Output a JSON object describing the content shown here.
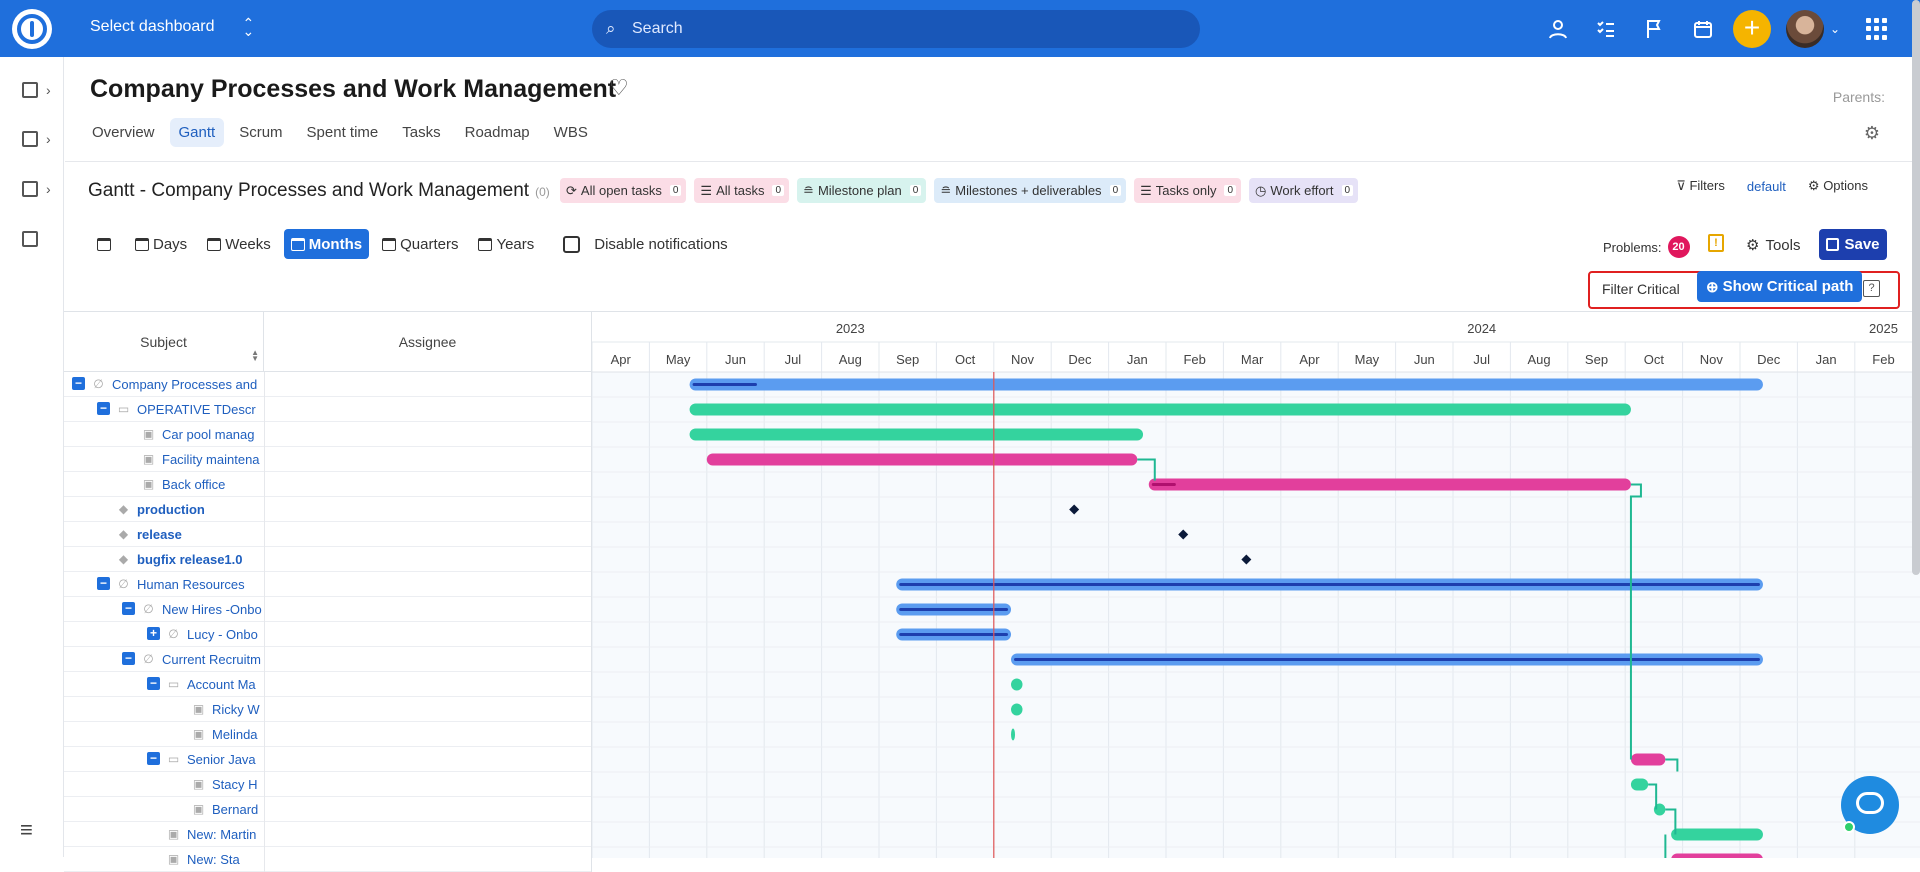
{
  "topbar": {
    "dashboard_select": "Select dashboard",
    "search_placeholder": "Search",
    "plus": "+"
  },
  "project": {
    "title": "Company Processes and Work Management",
    "parents_label": "Parents:",
    "tabs": [
      {
        "label": "Overview",
        "active": false
      },
      {
        "label": "Gantt",
        "active": true
      },
      {
        "label": "Scrum",
        "active": false
      },
      {
        "label": "Spent time",
        "active": false
      },
      {
        "label": "Tasks",
        "active": false
      },
      {
        "label": "Roadmap",
        "active": false
      },
      {
        "label": "WBS",
        "active": false
      }
    ]
  },
  "gantt": {
    "title": "Gantt - Company Processes and Work Management",
    "count": "(0)",
    "filters": [
      {
        "label": "All open tasks",
        "count": "0",
        "color": "#fbdde6",
        "icon": "refresh-icon"
      },
      {
        "label": "All tasks",
        "count": "0",
        "color": "#fbdde6",
        "icon": "list-icon"
      },
      {
        "label": "Milestone plan",
        "count": "0",
        "color": "#d7f3ee",
        "icon": "milestone-icon"
      },
      {
        "label": "Milestones + deliverables",
        "count": "0",
        "color": "#dcebf9",
        "icon": "milestone-icon"
      },
      {
        "label": "Tasks only",
        "count": "0",
        "color": "#fbdde6",
        "icon": "list-icon"
      },
      {
        "label": "Work effort",
        "count": "0",
        "color": "#e6e2f7",
        "icon": "clock-icon"
      }
    ],
    "filters_label": "Filters",
    "default_label": "default",
    "options_label": "Options",
    "zoom": [
      {
        "label": "Days",
        "active": false
      },
      {
        "label": "Weeks",
        "active": false
      },
      {
        "label": "Months",
        "active": true
      },
      {
        "label": "Quarters",
        "active": false
      },
      {
        "label": "Years",
        "active": false
      }
    ],
    "disable_notifications": "Disable notifications",
    "problems_label": "Problems:",
    "problems_count": "20",
    "tools_label": "Tools",
    "save_label": "Save",
    "filter_critical": "Filter Critical",
    "show_critical_path": "Show Critical path",
    "help": "?",
    "columns": {
      "subject": "Subject",
      "assignee": "Assignee"
    },
    "years": [
      {
        "label": "2023",
        "month_index": 4
      },
      {
        "label": "2024",
        "month_index": 15
      },
      {
        "label": "2025",
        "month_index": 22
      }
    ],
    "months": [
      "Apr",
      "May",
      "Jun",
      "Jul",
      "Aug",
      "Sep",
      "Oct",
      "Nov",
      "Dec",
      "Jan",
      "Feb",
      "Mar",
      "Apr",
      "May",
      "Jun",
      "Jul",
      "Aug",
      "Sep",
      "Oct",
      "Nov",
      "Dec",
      "Jan",
      "Feb"
    ],
    "today_month": 7.0,
    "rows": [
      {
        "subject": "Company Processes and",
        "level": 0,
        "toggle": "−",
        "icon": "∅",
        "bold": false,
        "bar": {
          "start": 1.7,
          "end": 20.4,
          "color": "#5b9cf0",
          "progress": 0.06,
          "progress_color": "#1d3fae"
        }
      },
      {
        "subject": "OPERATIVE TDescr",
        "level": 1,
        "toggle": "−",
        "icon": "▭",
        "bold": false,
        "bar": {
          "start": 1.7,
          "end": 18.1,
          "color": "#34d39e"
        }
      },
      {
        "subject": "Car pool manag",
        "level": 2,
        "toggle": "",
        "icon": "▣",
        "bold": false,
        "bar": {
          "start": 1.7,
          "end": 9.6,
          "color": "#34d39e"
        }
      },
      {
        "subject": "Facility maintena",
        "level": 2,
        "toggle": "",
        "icon": "▣",
        "bold": false,
        "bar": {
          "start": 2.0,
          "end": 9.5,
          "color": "#e23f9c"
        }
      },
      {
        "subject": "Back office",
        "level": 2,
        "toggle": "",
        "icon": "▣",
        "bold": false,
        "bar": {
          "start": 9.7,
          "end": 18.1,
          "color": "#e23f9c",
          "progress": 0.05,
          "progress_color": "#b0106e"
        }
      },
      {
        "subject": "production",
        "level": 1,
        "toggle": "",
        "icon": "◆",
        "bold": true,
        "milestone": 8.4
      },
      {
        "subject": "release",
        "level": 1,
        "toggle": "",
        "icon": "◆",
        "bold": true,
        "milestone": 10.3
      },
      {
        "subject": "bugfix release1.0",
        "level": 1,
        "toggle": "",
        "icon": "◆",
        "bold": true,
        "milestone": 11.4
      },
      {
        "subject": "Human Resources",
        "level": 1,
        "toggle": "−",
        "icon": "∅",
        "bold": false,
        "bar": {
          "start": 5.3,
          "end": 20.4,
          "color": "#5b9cf0",
          "progress": 1,
          "progress_color": "#1d3fae"
        }
      },
      {
        "subject": "New Hires -Onbo",
        "level": 2,
        "toggle": "−",
        "icon": "∅",
        "bold": false,
        "bar": {
          "start": 5.3,
          "end": 7.3,
          "color": "#5b9cf0",
          "progress": 1,
          "progress_color": "#1d3fae"
        }
      },
      {
        "subject": "Lucy - Onbo",
        "level": 3,
        "toggle": "+",
        "icon": "∅",
        "bold": false,
        "bar": {
          "start": 5.3,
          "end": 7.3,
          "color": "#5b9cf0",
          "progress": 1,
          "progress_color": "#1d3fae"
        }
      },
      {
        "subject": "Current Recruitm",
        "level": 2,
        "toggle": "−",
        "icon": "∅",
        "bold": false,
        "bar": {
          "start": 7.3,
          "end": 20.4,
          "color": "#5b9cf0",
          "progress": 1,
          "progress_color": "#1d3fae"
        }
      },
      {
        "subject": "Account Ma",
        "level": 3,
        "toggle": "−",
        "icon": "▭",
        "bold": false,
        "bar": {
          "start": 7.3,
          "end": 7.5,
          "color": "#34d39e"
        }
      },
      {
        "subject": "Ricky W",
        "level": 4,
        "toggle": "",
        "icon": "▣",
        "bold": false,
        "bar": {
          "start": 7.3,
          "end": 7.5,
          "color": "#34d39e"
        }
      },
      {
        "subject": "Melinda",
        "level": 4,
        "toggle": "",
        "icon": "▣",
        "bold": false,
        "bar": {
          "start": 7.3,
          "end": 7.32,
          "color": "#34d39e"
        }
      },
      {
        "subject": "Senior Java",
        "level": 3,
        "toggle": "−",
        "icon": "▭",
        "bold": false,
        "bar": {
          "start": 18.1,
          "end": 18.7,
          "color": "#e23f9c"
        }
      },
      {
        "subject": "Stacy H",
        "level": 4,
        "toggle": "",
        "icon": "▣",
        "bold": false,
        "bar": {
          "start": 18.1,
          "end": 18.4,
          "color": "#34d39e"
        }
      },
      {
        "subject": "Bernard",
        "level": 4,
        "toggle": "",
        "icon": "▣",
        "bold": false,
        "bar": {
          "start": 18.5,
          "end": 18.7,
          "color": "#34d39e"
        }
      },
      {
        "subject": "New: Martin",
        "level": 3,
        "toggle": "",
        "icon": "▣",
        "bold": false,
        "bar": {
          "start": 18.8,
          "end": 20.4,
          "color": "#34d39e"
        }
      },
      {
        "subject": "New: Sta",
        "level": 3,
        "toggle": "",
        "icon": "▣",
        "bold": false,
        "bar": {
          "start": 18.8,
          "end": 20.4,
          "color": "#e23f9c"
        }
      }
    ],
    "critical_path_color": "#1fb892",
    "today_color": "#e05555"
  }
}
